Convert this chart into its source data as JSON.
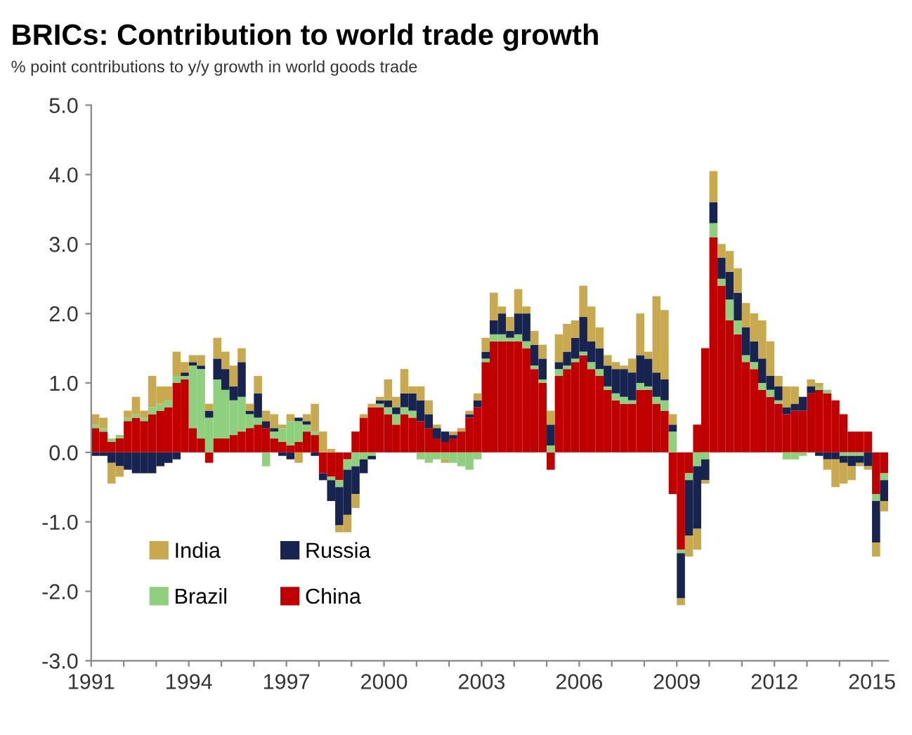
{
  "chart_data": {
    "type": "bar",
    "stacked": true,
    "title": "BRICs: Contribution to world trade growth",
    "subtitle": "% point contributions to y/y growth in world goods trade",
    "x": [
      1991.125,
      1991.375,
      1991.625,
      1991.875,
      1992.125,
      1992.375,
      1992.625,
      1992.875,
      1993.125,
      1993.375,
      1993.625,
      1993.875,
      1994.125,
      1994.375,
      1994.625,
      1994.875,
      1995.125,
      1995.375,
      1995.625,
      1995.875,
      1996.125,
      1996.375,
      1996.625,
      1996.875,
      1997.125,
      1997.375,
      1997.625,
      1997.875,
      1998.125,
      1998.375,
      1998.625,
      1998.875,
      1999.125,
      1999.375,
      1999.625,
      1999.875,
      2000.125,
      2000.375,
      2000.625,
      2000.875,
      2001.125,
      2001.375,
      2001.625,
      2001.875,
      2002.125,
      2002.375,
      2002.625,
      2002.875,
      2003.125,
      2003.375,
      2003.625,
      2003.875,
      2004.125,
      2004.375,
      2004.625,
      2004.875,
      2005.125,
      2005.375,
      2005.625,
      2005.875,
      2006.125,
      2006.375,
      2006.625,
      2006.875,
      2007.125,
      2007.375,
      2007.625,
      2007.875,
      2008.125,
      2008.375,
      2008.625,
      2008.875,
      2009.125,
      2009.375,
      2009.625,
      2009.875,
      2010.125,
      2010.375,
      2010.625,
      2010.875,
      2011.125,
      2011.375,
      2011.625,
      2011.875,
      2012.125,
      2012.375,
      2012.625,
      2012.875,
      2013.125,
      2013.375,
      2013.625,
      2013.875,
      2014.125,
      2014.375,
      2014.625,
      2014.875,
      2015.125,
      2015.375
    ],
    "series": [
      {
        "name": "China",
        "color": "#c00000",
        "values": [
          0.35,
          0.3,
          0.15,
          0.2,
          0.45,
          0.5,
          0.45,
          0.55,
          0.6,
          0.65,
          1.0,
          1.05,
          0.35,
          0.2,
          -0.15,
          0.2,
          0.2,
          0.25,
          0.3,
          0.35,
          0.4,
          0.35,
          0.2,
          0.15,
          0.1,
          0.15,
          0.3,
          0.25,
          -0.3,
          -0.35,
          -0.4,
          -0.1,
          0.3,
          0.5,
          0.65,
          0.65,
          0.55,
          0.4,
          0.55,
          0.5,
          0.45,
          0.35,
          0.2,
          0.15,
          0.2,
          0.3,
          0.5,
          0.65,
          1.3,
          1.6,
          1.6,
          1.6,
          1.6,
          1.5,
          1.2,
          1.0,
          -0.25,
          1.1,
          1.2,
          1.3,
          1.4,
          1.2,
          1.1,
          0.9,
          0.75,
          0.7,
          0.7,
          0.9,
          0.9,
          0.7,
          0.6,
          -0.6,
          -1.4,
          -0.3,
          0.4,
          1.5,
          3.1,
          2.4,
          1.9,
          1.7,
          1.3,
          1.2,
          0.9,
          0.8,
          0.7,
          0.55,
          0.6,
          0.6,
          0.85,
          0.9,
          0.85,
          0.75,
          0.55,
          0.3,
          0.3,
          0.3,
          -0.6,
          -0.3
        ]
      },
      {
        "name": "Brazil",
        "color": "#8fd07f",
        "values": [
          0.05,
          0.05,
          0.05,
          0.05,
          0.05,
          0.05,
          0.05,
          0.1,
          0.1,
          0.1,
          0.1,
          0.05,
          0.9,
          1.0,
          0.5,
          0.85,
          0.7,
          0.5,
          0.5,
          0.2,
          0.1,
          -0.2,
          0.1,
          0.2,
          0.35,
          0.3,
          0.1,
          0.05,
          0.0,
          -0.05,
          -0.1,
          -0.15,
          -0.2,
          -0.1,
          -0.05,
          0.05,
          0.1,
          0.15,
          0.1,
          0.1,
          -0.1,
          -0.15,
          -0.1,
          -0.1,
          -0.15,
          -0.2,
          -0.25,
          -0.1,
          0.05,
          0.1,
          0.1,
          0.05,
          0.1,
          0.1,
          0.05,
          0.05,
          0.1,
          0.1,
          0.05,
          0.05,
          0.05,
          0.1,
          0.1,
          0.05,
          0.1,
          0.1,
          0.05,
          0.1,
          0.05,
          0.1,
          0.15,
          0.3,
          -0.05,
          -0.1,
          -0.2,
          -0.1,
          0.2,
          0.1,
          0.3,
          0.2,
          0.1,
          0.1,
          0.1,
          0.1,
          0.05,
          -0.1,
          -0.1,
          -0.05,
          0.0,
          0.05,
          0.05,
          0.0,
          -0.05,
          -0.05,
          -0.05,
          0.0,
          -0.1,
          -0.1
        ]
      },
      {
        "name": "Russia",
        "color": "#16244f",
        "values": [
          -0.05,
          -0.05,
          -0.15,
          -0.2,
          -0.25,
          -0.3,
          -0.3,
          -0.3,
          -0.2,
          -0.15,
          -0.1,
          0.05,
          0.05,
          0.05,
          0.1,
          0.3,
          0.3,
          0.2,
          0.5,
          0.05,
          0.35,
          0.1,
          0.05,
          -0.05,
          -0.1,
          0.05,
          0.05,
          -0.05,
          -0.1,
          -0.3,
          -0.55,
          -0.65,
          -0.4,
          -0.2,
          -0.05,
          0.05,
          0.1,
          0.1,
          0.2,
          0.25,
          0.3,
          0.2,
          0.15,
          0.15,
          0.05,
          0.0,
          0.05,
          0.1,
          0.1,
          0.2,
          0.3,
          0.1,
          0.3,
          0.4,
          0.3,
          0.3,
          0.3,
          0.1,
          0.2,
          0.3,
          0.5,
          0.3,
          0.3,
          0.3,
          0.35,
          0.4,
          0.4,
          0.4,
          0.4,
          0.35,
          0.3,
          0.1,
          -0.65,
          -0.8,
          -0.9,
          -0.3,
          0.3,
          0.3,
          0.4,
          0.4,
          0.4,
          0.3,
          0.35,
          0.2,
          0.2,
          0.1,
          0.1,
          0.2,
          0.1,
          -0.05,
          -0.1,
          -0.1,
          -0.1,
          -0.15,
          -0.1,
          -0.2,
          -0.6,
          -0.3
        ]
      },
      {
        "name": "India",
        "color": "#c9a94e",
        "values": [
          0.15,
          0.15,
          -0.3,
          -0.15,
          0.1,
          0.25,
          0.1,
          0.45,
          0.25,
          0.2,
          0.35,
          0.15,
          0.1,
          0.15,
          0.1,
          0.3,
          0.25,
          0.3,
          0.2,
          0.1,
          0.25,
          0.15,
          0.2,
          0.05,
          0.1,
          -0.15,
          0.1,
          0.4,
          0.3,
          0.05,
          -0.1,
          -0.25,
          -0.2,
          0.05,
          0.05,
          0.05,
          0.3,
          0.15,
          0.35,
          0.1,
          0.2,
          0.2,
          0.05,
          -0.05,
          0.05,
          0.05,
          0.05,
          0.1,
          0.2,
          0.4,
          0.1,
          0.2,
          0.35,
          0.1,
          0.2,
          0.2,
          0.2,
          0.4,
          0.4,
          0.25,
          0.45,
          0.5,
          0.3,
          0.15,
          0.1,
          0.05,
          0.2,
          0.6,
          0.1,
          1.1,
          1.0,
          0.15,
          -0.1,
          -0.3,
          -0.3,
          -0.05,
          0.45,
          0.2,
          0.3,
          0.35,
          0.35,
          0.4,
          0.55,
          0.5,
          0.15,
          0.3,
          0.25,
          0.0,
          0.1,
          0.05,
          -0.15,
          -0.4,
          -0.3,
          -0.2,
          -0.05,
          -0.05,
          -0.2,
          -0.15
        ]
      }
    ],
    "xlim": [
      1991,
      2015.5
    ],
    "xticks": [
      1991,
      {
        "value": 1992,
        "label": null
      },
      {
        "value": 1993,
        "label": null
      },
      1994,
      {
        "value": 1995,
        "label": null
      },
      {
        "value": 1996,
        "label": null
      },
      1997,
      {
        "value": 1998,
        "label": null
      },
      {
        "value": 1999,
        "label": null
      },
      2000,
      {
        "value": 2001,
        "label": null
      },
      {
        "value": 2002,
        "label": null
      },
      2003,
      {
        "value": 2004,
        "label": null
      },
      {
        "value": 2005,
        "label": null
      },
      2006,
      {
        "value": 2007,
        "label": null
      },
      {
        "value": 2008,
        "label": null
      },
      2009,
      {
        "value": 2010,
        "label": null
      },
      {
        "value": 2011,
        "label": null
      },
      2012,
      {
        "value": 2013,
        "label": null
      },
      {
        "value": 2014,
        "label": null
      },
      2015
    ],
    "ylim": [
      -3,
      5
    ],
    "yticks": [
      {
        "value": 5,
        "label": "5.0"
      },
      {
        "value": 4,
        "label": "4.0"
      },
      {
        "value": 3,
        "label": "3.0"
      },
      {
        "value": 2,
        "label": "2.0"
      },
      {
        "value": 1,
        "label": "1.0"
      },
      {
        "value": 0,
        "label": "0.0"
      },
      {
        "value": -1,
        "label": "-1.0"
      },
      {
        "value": -2,
        "label": "-2.0"
      },
      {
        "value": -3,
        "label": "-3.0"
      }
    ],
    "grid": false,
    "legend": "bottom left"
  }
}
